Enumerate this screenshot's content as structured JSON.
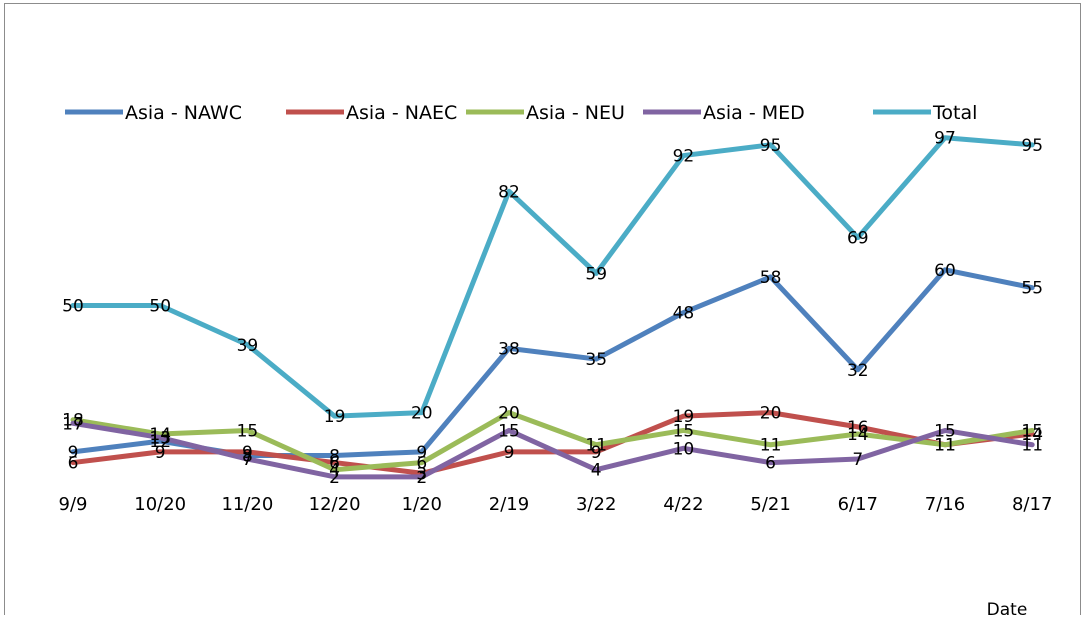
{
  "chart_data": {
    "type": "line",
    "title": "",
    "xlabel": "Date",
    "ylabel": "",
    "categories": [
      "9/9",
      "10/20",
      "11/20",
      "12/20",
      "1/20",
      "2/19",
      "3/22",
      "4/22",
      "5/21",
      "6/17",
      "7/16",
      "8/17"
    ],
    "ylim": [
      0,
      100
    ],
    "legend_position": "top",
    "grid": false,
    "data_labels": true,
    "series": [
      {
        "name": "Asia - NAWC",
        "color": "#4f81bd",
        "values": [
          9,
          12,
          8,
          8,
          9,
          38,
          35,
          48,
          58,
          32,
          60,
          55
        ]
      },
      {
        "name": "Asia - NAEC",
        "color": "#c0504d",
        "values": [
          6,
          9,
          9,
          6,
          3,
          9,
          9,
          19,
          20,
          16,
          11,
          14
        ]
      },
      {
        "name": "Asia - NEU",
        "color": "#9bbb59",
        "values": [
          18,
          14,
          15,
          4,
          6,
          20,
          11,
          15,
          11,
          14,
          11,
          15
        ]
      },
      {
        "name": "Asia - MED",
        "color": "#8064a2",
        "values": [
          17,
          13,
          7,
          2,
          2,
          15,
          4,
          10,
          6,
          7,
          15,
          11
        ]
      },
      {
        "name": "Total",
        "color": "#4bacc6",
        "values": [
          50,
          50,
          39,
          19,
          20,
          82,
          59,
          92,
          95,
          69,
          97,
          95
        ]
      }
    ]
  }
}
